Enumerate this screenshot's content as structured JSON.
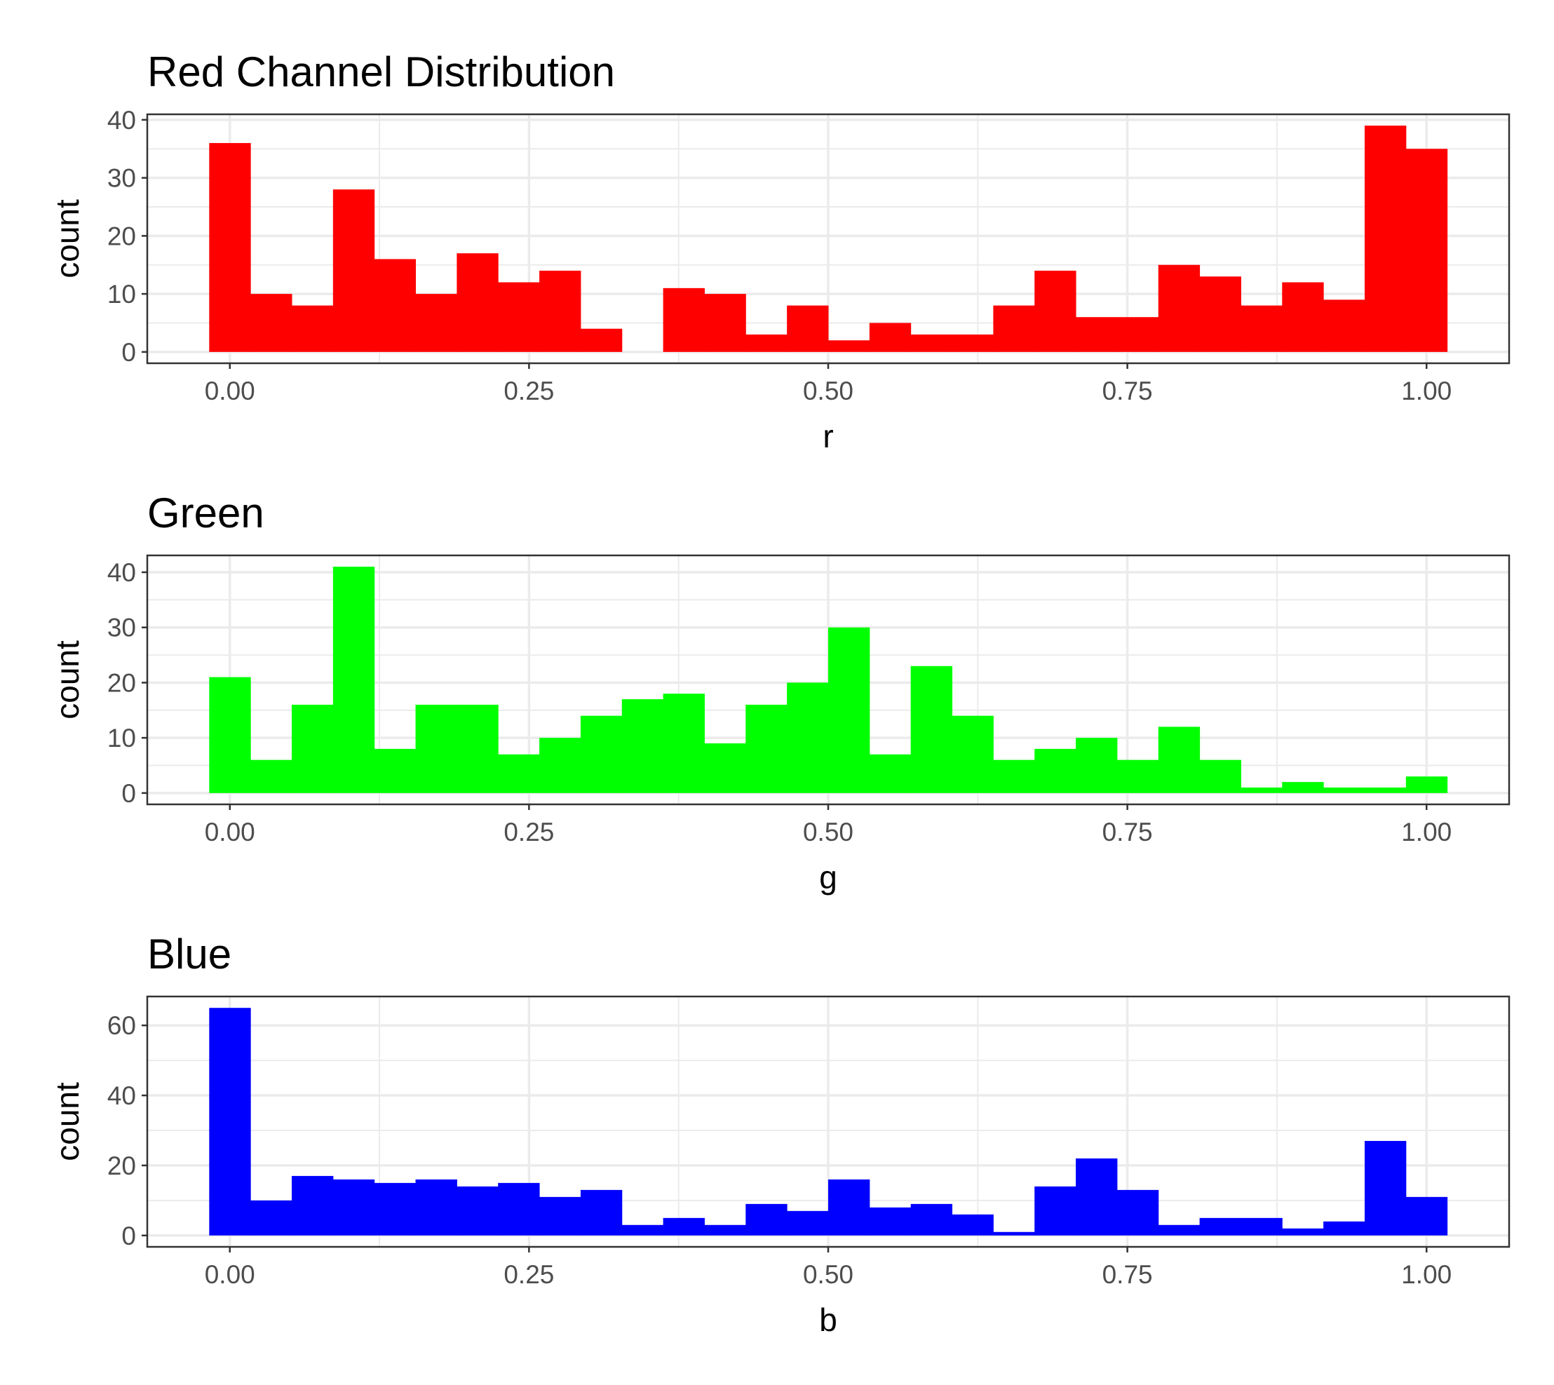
{
  "chart_data": [
    {
      "type": "bar",
      "subtype": "histogram",
      "title": "Red Channel Distribution",
      "xlabel": "r",
      "ylabel": "count",
      "color": "#FF0000",
      "bins": 30,
      "bin_centers_range": [
        0,
        1
      ],
      "values": [
        36,
        10,
        8,
        28,
        16,
        10,
        17,
        12,
        14,
        4,
        0,
        11,
        10,
        3,
        8,
        2,
        5,
        3,
        3,
        8,
        14,
        6,
        6,
        15,
        13,
        8,
        12,
        9,
        39,
        35
      ],
      "xticks": [
        "0.00",
        "0.25",
        "0.50",
        "0.75",
        "1.00"
      ],
      "xtick_values": [
        0,
        0.25,
        0.5,
        0.75,
        1
      ],
      "yticks": [
        "0",
        "10",
        "20",
        "30",
        "40"
      ],
      "ytick_values": [
        0,
        10,
        20,
        30,
        40
      ],
      "xlim": [
        -0.069,
        1.069
      ],
      "ylim": [
        -1.95,
        40.95
      ],
      "grid": true
    },
    {
      "type": "bar",
      "subtype": "histogram",
      "title": "Green",
      "xlabel": "g",
      "ylabel": "count",
      "color": "#00FF00",
      "bins": 30,
      "bin_centers_range": [
        0,
        1
      ],
      "values": [
        21,
        6,
        16,
        41,
        8,
        16,
        16,
        7,
        10,
        14,
        17,
        18,
        9,
        16,
        20,
        30,
        7,
        23,
        14,
        6,
        8,
        10,
        6,
        12,
        6,
        1,
        2,
        1,
        1,
        3
      ],
      "xticks": [
        "0.00",
        "0.25",
        "0.50",
        "0.75",
        "1.00"
      ],
      "xtick_values": [
        0,
        0.25,
        0.5,
        0.75,
        1
      ],
      "yticks": [
        "0",
        "10",
        "20",
        "30",
        "40"
      ],
      "ytick_values": [
        0,
        10,
        20,
        30,
        40
      ],
      "xlim": [
        -0.069,
        1.069
      ],
      "ylim": [
        -2.05,
        43.05
      ],
      "grid": true
    },
    {
      "type": "bar",
      "subtype": "histogram",
      "title": "Blue",
      "xlabel": "b",
      "ylabel": "count",
      "color": "#0000FF",
      "bins": 30,
      "bin_centers_range": [
        0,
        1
      ],
      "values": [
        65,
        10,
        17,
        16,
        15,
        16,
        14,
        15,
        11,
        13,
        3,
        5,
        3,
        9,
        7,
        16,
        8,
        9,
        6,
        1,
        14,
        22,
        13,
        3,
        5,
        5,
        2,
        4,
        27,
        11
      ],
      "xticks": [
        "0.00",
        "0.25",
        "0.50",
        "0.75",
        "1.00"
      ],
      "xtick_values": [
        0,
        0.25,
        0.5,
        0.75,
        1
      ],
      "yticks": [
        "0",
        "20",
        "40",
        "60"
      ],
      "ytick_values": [
        0,
        20,
        40,
        60
      ],
      "xlim": [
        -0.069,
        1.069
      ],
      "ylim": [
        -3.25,
        68.25
      ],
      "grid": true
    }
  ]
}
